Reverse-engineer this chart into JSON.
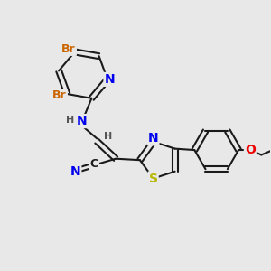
{
  "background_color": "#e8e8e8",
  "bond_color": "#1a1a1a",
  "bond_width": 1.5,
  "font_size": 10,
  "font_size_small": 8,
  "colors": {
    "N": "#0000ee",
    "S": "#b8b800",
    "O": "#ee0000",
    "Br": "#cc6600",
    "C": "#1a1a1a",
    "H": "#555555"
  }
}
